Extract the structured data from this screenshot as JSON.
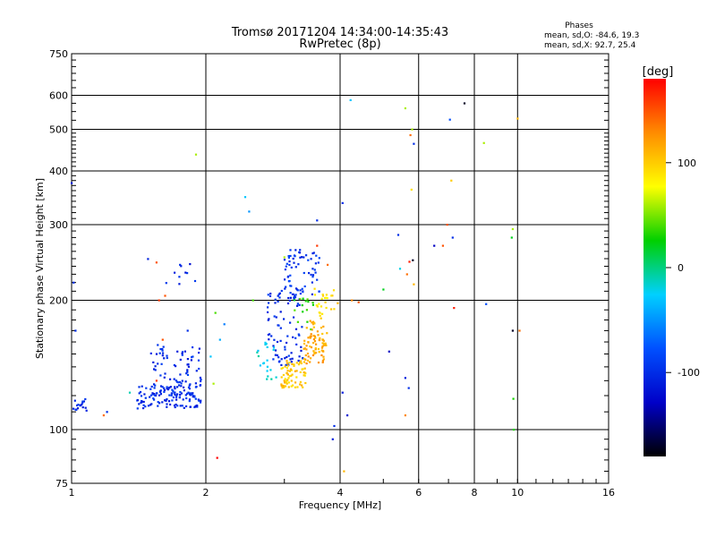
{
  "chart_data": {
    "type": "scatter",
    "title": "Tromsø 20171204 14:34:00-14:35:43",
    "subtitle": "RwPretec (8p)",
    "xlabel": "Frequency [MHz]",
    "ylabel": "Stationary phase Virtual Height [km]",
    "x_scale": "log",
    "y_scale": "log",
    "xlim": [
      1,
      16
    ],
    "ylim": [
      75,
      750
    ],
    "x_ticks": [
      "1",
      "2",
      "4",
      "6",
      "8",
      "10",
      "16"
    ],
    "y_ticks": [
      "75",
      "100",
      "200",
      "300",
      "400",
      "500",
      "600",
      "750"
    ],
    "grid": true,
    "phases": {
      "title": "Phases",
      "line_o": "mean, sd,O: -84.6, 19.3",
      "line_x": "mean, sd,X: 92.7, 25.4"
    },
    "colorbar": {
      "label": "[deg]",
      "range": [
        -180,
        180
      ],
      "ticks": [
        "100",
        "0",
        "-100"
      ],
      "stops": [
        "#ff0000",
        "#ff8c00",
        "#ffff00",
        "#00d000",
        "#00d0ff",
        "#0050ff",
        "#0000c8",
        "#000000"
      ]
    },
    "clusters": [
      {
        "f": [
          1.0,
          1.08
        ],
        "h": [
          110,
          118
        ],
        "phase": -100,
        "n": 18
      },
      {
        "f": [
          1.4,
          1.95
        ],
        "h": [
          112,
          128
        ],
        "phase": -100,
        "n": 130
      },
      {
        "f": [
          1.5,
          1.95
        ],
        "h": [
          125,
          158
        ],
        "phase": -100,
        "n": 70
      },
      {
        "f": [
          1.45,
          1.9
        ],
        "h": [
          218,
          250
        ],
        "phase": -105,
        "n": 10
      },
      {
        "f": [
          2.75,
          3.3
        ],
        "h": [
          140,
          215
        ],
        "phase": -100,
        "n": 90
      },
      {
        "f": [
          3.0,
          3.6
        ],
        "h": [
          205,
          262
        ],
        "phase": -95,
        "n": 60
      },
      {
        "f": [
          2.6,
          2.9
        ],
        "h": [
          130,
          160
        ],
        "phase": -20,
        "n": 20
      },
      {
        "f": [
          2.95,
          3.35
        ],
        "h": [
          125,
          145
        ],
        "phase": 100,
        "n": 70
      },
      {
        "f": [
          3.3,
          3.75
        ],
        "h": [
          142,
          180
        ],
        "phase": 115,
        "n": 80
      },
      {
        "f": [
          3.5,
          3.9
        ],
        "h": [
          180,
          215
        ],
        "phase": 90,
        "n": 25
      },
      {
        "f": [
          3.15,
          3.5
        ],
        "h": [
          170,
          205
        ],
        "phase": 35,
        "n": 15
      }
    ],
    "points": [
      [
        1.01,
        220,
        -100
      ],
      [
        1.0,
        375,
        -110
      ],
      [
        1.02,
        170,
        -100
      ],
      [
        1.18,
        108,
        140
      ],
      [
        1.55,
        245,
        150
      ],
      [
        1.55,
        130,
        160
      ],
      [
        1.57,
        200,
        160
      ],
      [
        1.2,
        110,
        -100
      ],
      [
        1.62,
        205,
        150
      ],
      [
        1.82,
        170,
        -100
      ],
      [
        1.35,
        122,
        -10
      ],
      [
        1.9,
        437,
        60
      ],
      [
        1.75,
        242,
        -100
      ],
      [
        1.6,
        162,
        150
      ],
      [
        2.1,
        187,
        40
      ],
      [
        2.15,
        162,
        -40
      ],
      [
        2.08,
        128,
        60
      ],
      [
        2.05,
        148,
        -30
      ],
      [
        2.12,
        86,
        180
      ],
      [
        2.45,
        348,
        -30
      ],
      [
        2.5,
        322,
        -50
      ],
      [
        2.55,
        200,
        40
      ],
      [
        2.2,
        176,
        -60
      ],
      [
        3.55,
        307,
        -100
      ],
      [
        3.55,
        268,
        160
      ],
      [
        3.75,
        242,
        140
      ],
      [
        3.95,
        197,
        110
      ],
      [
        4.05,
        337,
        -100
      ],
      [
        4.05,
        122,
        -110
      ],
      [
        4.08,
        80,
        110
      ],
      [
        4.15,
        108,
        -120
      ],
      [
        4.22,
        585,
        -30
      ],
      [
        4.25,
        200,
        130
      ],
      [
        4.4,
        198,
        150
      ],
      [
        3.85,
        95,
        -110
      ],
      [
        3.88,
        102,
        -100
      ],
      [
        5.0,
        212,
        20
      ],
      [
        5.15,
        152,
        -130
      ],
      [
        5.4,
        284,
        -100
      ],
      [
        5.45,
        237,
        -20
      ],
      [
        5.6,
        560,
        60
      ],
      [
        5.6,
        108,
        130
      ],
      [
        5.65,
        230,
        140
      ],
      [
        5.72,
        246,
        170
      ],
      [
        5.75,
        485,
        140
      ],
      [
        5.78,
        362,
        90
      ],
      [
        5.8,
        500,
        60
      ],
      [
        5.82,
        248,
        -170
      ],
      [
        5.85,
        463,
        -100
      ],
      [
        5.7,
        125,
        -100
      ],
      [
        5.6,
        132,
        -110
      ],
      [
        5.85,
        218,
        110
      ],
      [
        6.5,
        268,
        -130
      ],
      [
        6.8,
        268,
        150
      ],
      [
        6.95,
        300,
        150
      ],
      [
        7.05,
        527,
        -80
      ],
      [
        7.1,
        380,
        100
      ],
      [
        7.15,
        280,
        -100
      ],
      [
        7.2,
        192,
        170
      ],
      [
        7.6,
        575,
        -170
      ],
      [
        8.4,
        465,
        60
      ],
      [
        8.5,
        196,
        -80
      ],
      [
        9.7,
        280,
        20
      ],
      [
        9.75,
        293,
        60
      ],
      [
        9.75,
        170,
        -170
      ],
      [
        9.78,
        118,
        30
      ],
      [
        9.8,
        100,
        30
      ],
      [
        10.0,
        530,
        110
      ],
      [
        10.1,
        170,
        140
      ],
      [
        3.25,
        262,
        -100
      ],
      [
        3.0,
        252,
        60
      ]
    ]
  }
}
